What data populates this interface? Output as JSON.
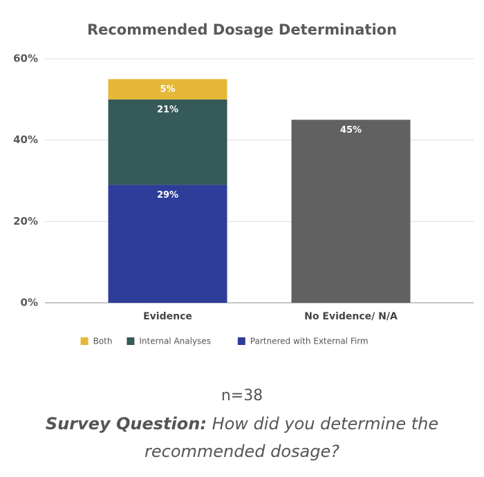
{
  "chart_data": {
    "type": "stacked_bar",
    "title": "Recommended Dosage Determination",
    "categories": [
      "Evidence",
      "No Evidence/ N/A"
    ],
    "series": [
      {
        "name": "Partnered with External Firm",
        "color": "#2e3d9a",
        "values": [
          29,
          null
        ],
        "value_labels": [
          "29%",
          null
        ]
      },
      {
        "name": "Internal Analyses",
        "color": "#355a57",
        "values": [
          21,
          null
        ],
        "value_labels": [
          "21%",
          null
        ]
      },
      {
        "name": "Both",
        "color": "#e6b83a",
        "values": [
          5,
          null
        ],
        "value_labels": [
          "5%",
          null
        ]
      },
      {
        "color": "#616161",
        "values": [
          null,
          45
        ],
        "value_labels": [
          null,
          "45%"
        ]
      }
    ],
    "ylim": [
      0,
      60
    ],
    "yticks": [
      {
        "value": 0,
        "label": "0%"
      },
      {
        "value": 20,
        "label": "20%"
      },
      {
        "value": 40,
        "label": "40%"
      },
      {
        "value": 60,
        "label": "60%"
      }
    ],
    "grid": true,
    "footnote": "n=38",
    "question_label": "Survey Question:",
    "question": "How did you determine the recommended dosage?"
  }
}
